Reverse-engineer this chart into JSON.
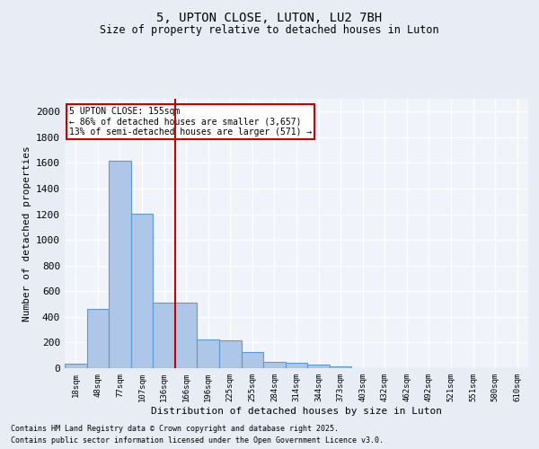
{
  "title": "5, UPTON CLOSE, LUTON, LU2 7BH",
  "subtitle": "Size of property relative to detached houses in Luton",
  "xlabel": "Distribution of detached houses by size in Luton",
  "ylabel": "Number of detached properties",
  "categories": [
    "18sqm",
    "48sqm",
    "77sqm",
    "107sqm",
    "136sqm",
    "166sqm",
    "196sqm",
    "225sqm",
    "255sqm",
    "284sqm",
    "314sqm",
    "344sqm",
    "373sqm",
    "403sqm",
    "432sqm",
    "462sqm",
    "492sqm",
    "521sqm",
    "551sqm",
    "580sqm",
    "610sqm"
  ],
  "values": [
    35,
    460,
    1620,
    1205,
    510,
    510,
    225,
    220,
    125,
    50,
    40,
    25,
    15,
    0,
    0,
    0,
    0,
    0,
    0,
    0,
    0
  ],
  "bar_color": "#aec6e8",
  "bar_edge_color": "#5b9bd5",
  "red_line_x": 4.5,
  "annotation_text": "5 UPTON CLOSE: 155sqm\n← 86% of detached houses are smaller (3,657)\n13% of semi-detached houses are larger (571) →",
  "annotation_box_color": "#ffffff",
  "annotation_border_color": "#cc0000",
  "ylim": [
    0,
    2100
  ],
  "yticks": [
    0,
    200,
    400,
    600,
    800,
    1000,
    1200,
    1400,
    1600,
    1800,
    2000
  ],
  "bg_color": "#e8edf5",
  "plot_bg_color": "#f0f4fa",
  "grid_color": "#ffffff",
  "footer_line1": "Contains HM Land Registry data © Crown copyright and database right 2025.",
  "footer_line2": "Contains public sector information licensed under the Open Government Licence v3.0."
}
